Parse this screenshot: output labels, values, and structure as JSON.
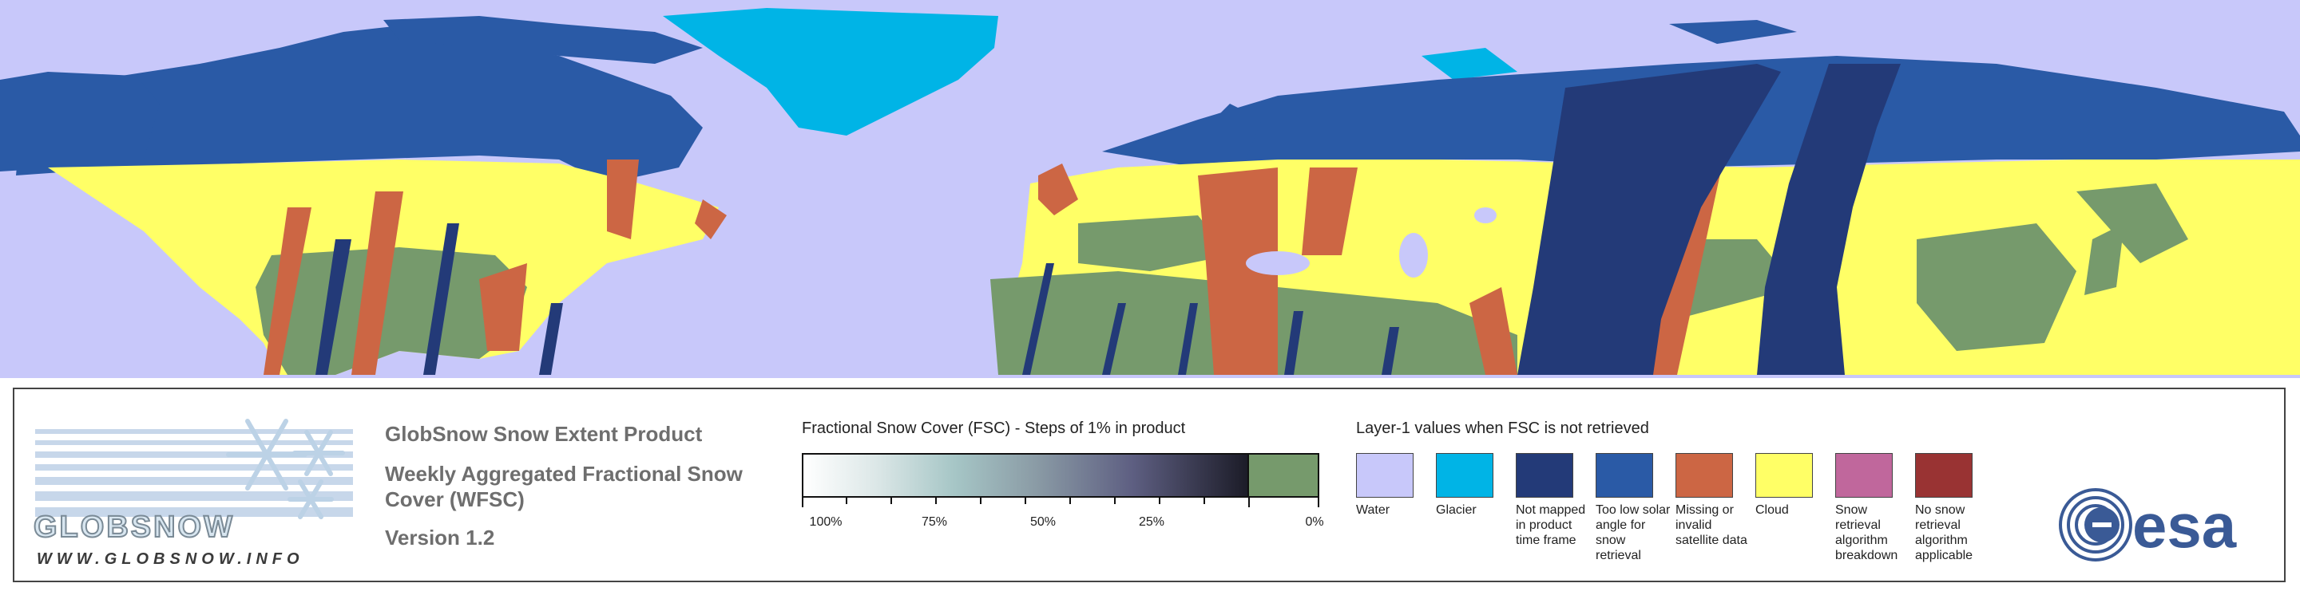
{
  "legend": {
    "logo": {
      "word": "GLOBSNOW",
      "url": "WWW.GLOBSNOW.INFO"
    },
    "product_title": "GlobSnow Snow Extent Product",
    "product_subtitle_line1": "Weekly Aggregated Fractional Snow",
    "product_subtitle_line2": "Cover (WFSC)",
    "version": "Version 1.2",
    "fsc": {
      "title": "Fractional Snow Cover (FSC) - Steps of 1% in product",
      "ticks": [
        "100%",
        "75%",
        "50%",
        "25%",
        "0%"
      ]
    },
    "layer1": {
      "title": "Layer-1 values when FSC is not retrieved",
      "items": [
        {
          "label": "Water",
          "color": "#c8c8fa"
        },
        {
          "label": "Glacier",
          "color": "#00b4e6"
        },
        {
          "label": "Not mapped in product time frame",
          "color": "#233a78"
        },
        {
          "label": "Too low solar angle for snow retrieval",
          "color": "#2a5aa6"
        },
        {
          "label": "Missing or invalid satellite data",
          "color": "#cc6644"
        },
        {
          "label": "Cloud",
          "color": "#ffff66"
        },
        {
          "label": "Snow retrieval algorithm breakdown",
          "color": "#c0679c"
        },
        {
          "label": "No snow retrieval algorithm applicable",
          "color": "#993333"
        }
      ]
    },
    "esa_logo": "esa"
  },
  "map_colors": {
    "water": "#c8c8fa",
    "glacier": "#00b4e6",
    "snow_free": "#769a6c",
    "cloud": "#ffff66",
    "missing": "#cc6644",
    "not_mapped": "#233a78",
    "low_solar": "#2a5aa6"
  }
}
